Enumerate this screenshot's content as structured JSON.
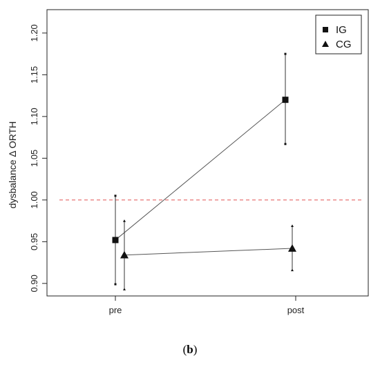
{
  "caption": {
    "open": "(",
    "letter": "b",
    "close": ")"
  },
  "chart_data": {
    "type": "line",
    "categories": [
      "pre",
      "post"
    ],
    "ylabel": "dysbalance  Δ ORTH",
    "ylim": [
      0.885,
      1.228
    ],
    "yticks": [
      "0.90",
      "0.95",
      "1.00",
      "1.05",
      "1.10",
      "1.15",
      "1.20"
    ],
    "reference_line": {
      "y": 1.0,
      "style": "dashed",
      "color": "#e05050"
    },
    "grid": false,
    "legend": {
      "position": "top-right"
    },
    "series": [
      {
        "name": "IG",
        "marker": "square",
        "values": [
          0.952,
          1.12
        ],
        "error_low": [
          0.899,
          1.067
        ],
        "error_high": [
          1.005,
          1.175
        ]
      },
      {
        "name": "CG",
        "marker": "triangle",
        "values": [
          0.934,
          0.942
        ],
        "error_low": [
          0.893,
          0.916
        ],
        "error_high": [
          0.975,
          0.969
        ]
      }
    ],
    "colors": {
      "axis": "#222222",
      "series": "#333333"
    }
  }
}
